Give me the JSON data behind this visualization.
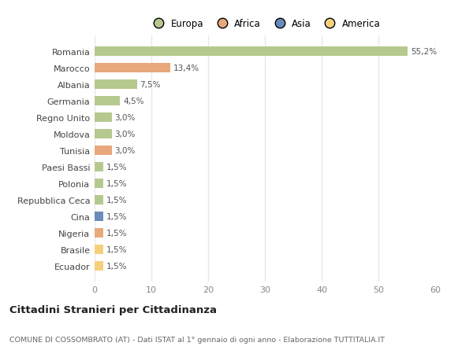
{
  "countries": [
    "Romania",
    "Marocco",
    "Albania",
    "Germania",
    "Regno Unito",
    "Moldova",
    "Tunisia",
    "Paesi Bassi",
    "Polonia",
    "Repubblica Ceca",
    "Cina",
    "Nigeria",
    "Brasile",
    "Ecuador"
  ],
  "values": [
    55.2,
    13.4,
    7.5,
    4.5,
    3.0,
    3.0,
    3.0,
    1.5,
    1.5,
    1.5,
    1.5,
    1.5,
    1.5,
    1.5
  ],
  "labels": [
    "55,2%",
    "13,4%",
    "7,5%",
    "4,5%",
    "3,0%",
    "3,0%",
    "3,0%",
    "1,5%",
    "1,5%",
    "1,5%",
    "1,5%",
    "1,5%",
    "1,5%",
    "1,5%"
  ],
  "colors": [
    "#b5c98e",
    "#e8a87c",
    "#b5c98e",
    "#b5c98e",
    "#b5c98e",
    "#b5c98e",
    "#e8a87c",
    "#b5c98e",
    "#b5c98e",
    "#b5c98e",
    "#6b8cba",
    "#e8a87c",
    "#f5d07a",
    "#f5d07a"
  ],
  "legend_labels": [
    "Europa",
    "Africa",
    "Asia",
    "America"
  ],
  "legend_colors": [
    "#b5c98e",
    "#e8a87c",
    "#6b8cba",
    "#f5d07a"
  ],
  "xlim": [
    0,
    60
  ],
  "xticks": [
    0,
    10,
    20,
    30,
    40,
    50,
    60
  ],
  "title": "Cittadini Stranieri per Cittadinanza",
  "subtitle": "COMUNE DI COSSOMBRATO (AT) - Dati ISTAT al 1° gennaio di ogni anno - Elaborazione TUTTITALIA.IT",
  "bg_color": "#ffffff",
  "grid_color": "#e8e8e8",
  "bar_alpha": 1.0
}
